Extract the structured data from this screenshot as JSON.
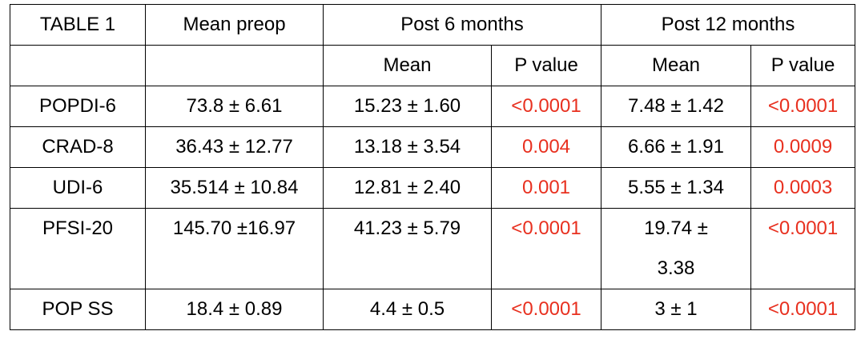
{
  "table": {
    "header": [
      "TABLE 1",
      "Mean preop",
      "Post 6 months",
      "Post 12 months"
    ],
    "subheader": [
      "Mean",
      "P value",
      "Mean",
      "P value"
    ],
    "rows": [
      [
        "POPDI-6",
        "73.8 ± 6.61",
        "15.23 ± 1.60",
        "<0.0001",
        "7.48 ± 1.42",
        "<0.0001"
      ],
      [
        "CRAD-8",
        "36.43 ± 12.77",
        "13.18 ± 3.54",
        "0.004",
        "6.66 ± 1.91",
        "0.0009"
      ],
      [
        "UDI-6",
        "35.514 ± 10.84",
        "12.81 ± 2.40",
        "0.001",
        "5.55 ± 1.34",
        "0.0003"
      ],
      [
        "PFSI-20",
        "145.70 ±16.97",
        "41.23 ± 5.79",
        "<0.0001",
        "19.74 ± 3.38",
        "<0.0001"
      ],
      [
        "POP SS",
        "18.4 ± 0.89",
        "4.4 ± 0.5",
        "<0.0001",
        "3 ± 1",
        "<0.0001"
      ]
    ]
  }
}
